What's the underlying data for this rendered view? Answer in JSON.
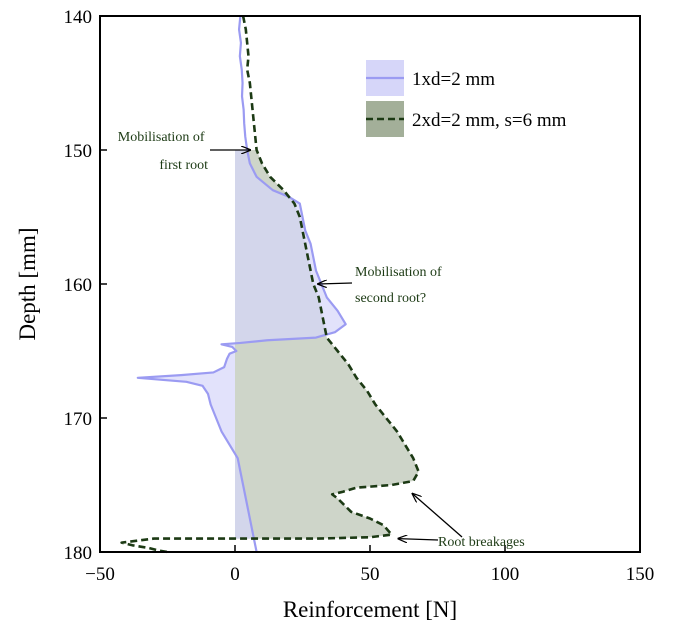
{
  "chart_data": {
    "type": "area",
    "xlabel": "Reinforcement [N]",
    "ylabel": "Depth [mm]",
    "xlim": [
      -50,
      150
    ],
    "ylim": [
      140,
      180
    ],
    "y_inverted": true,
    "xticks": [
      -50,
      0,
      50,
      100,
      150
    ],
    "yticks": [
      140,
      150,
      160,
      170,
      180
    ],
    "grid": false,
    "legend_position": "top-right",
    "colors": {
      "series1_line": "#9b9bf2",
      "series1_fill": "#d6d6f9",
      "series2_line": "#1c3a14",
      "series2_fill": "#9eab94",
      "annotation_text": "#1c3a14"
    },
    "series": [
      {
        "name": "1xd=2 mm",
        "fill_from_x": 0,
        "fill_depth_range": [
          150,
          179
        ],
        "points": [
          [
            2,
            140
          ],
          [
            1.5,
            141
          ],
          [
            2.2,
            142
          ],
          [
            1.8,
            143
          ],
          [
            2.5,
            144
          ],
          [
            2.8,
            145
          ],
          [
            2.6,
            146
          ],
          [
            3.2,
            147
          ],
          [
            3.4,
            148
          ],
          [
            3.8,
            149
          ],
          [
            4.5,
            150
          ],
          [
            5.5,
            151
          ],
          [
            8,
            152
          ],
          [
            14,
            153
          ],
          [
            20,
            153.5
          ],
          [
            24,
            154
          ],
          [
            25,
            155
          ],
          [
            26,
            156
          ],
          [
            28,
            157
          ],
          [
            29,
            158
          ],
          [
            30,
            159
          ],
          [
            32,
            160
          ],
          [
            34,
            161
          ],
          [
            38,
            162
          ],
          [
            41,
            163
          ],
          [
            37,
            163.6
          ],
          [
            30,
            164
          ],
          [
            12,
            164.2
          ],
          [
            2,
            164.4
          ],
          [
            -5,
            164.5
          ],
          [
            -1,
            164.7
          ],
          [
            0.5,
            165
          ],
          [
            -2,
            165.2
          ],
          [
            -3,
            165.6
          ],
          [
            -4,
            166.2
          ],
          [
            -8,
            166.6
          ],
          [
            -20,
            166.8
          ],
          [
            -36,
            167
          ],
          [
            -18,
            167.3
          ],
          [
            -12,
            167.6
          ],
          [
            -10,
            168.2
          ],
          [
            -9,
            169
          ],
          [
            -7,
            170
          ],
          [
            -5,
            171
          ],
          [
            -2,
            172
          ],
          [
            1,
            173
          ],
          [
            2,
            174
          ],
          [
            3,
            175
          ],
          [
            4,
            176
          ],
          [
            5,
            177
          ],
          [
            6,
            178
          ],
          [
            7,
            179
          ],
          [
            8,
            180
          ]
        ]
      },
      {
        "name": "2xd=2 mm, s=6 mm",
        "fill_from_x": 0,
        "fill_depth_range": [
          150,
          179
        ],
        "points": [
          [
            3,
            140
          ],
          [
            4,
            141
          ],
          [
            4.5,
            142
          ],
          [
            5,
            143
          ],
          [
            4.5,
            144
          ],
          [
            5.5,
            145
          ],
          [
            6,
            146
          ],
          [
            6.5,
            147
          ],
          [
            7,
            148
          ],
          [
            7.5,
            149
          ],
          [
            8,
            150
          ],
          [
            10,
            151
          ],
          [
            13,
            152
          ],
          [
            18,
            153
          ],
          [
            22,
            154
          ],
          [
            24,
            155
          ],
          [
            25,
            156
          ],
          [
            26,
            157
          ],
          [
            27,
            158
          ],
          [
            28,
            159
          ],
          [
            29,
            160
          ],
          [
            31,
            161
          ],
          [
            32,
            162
          ],
          [
            33,
            163
          ],
          [
            34,
            164
          ],
          [
            38,
            165
          ],
          [
            42,
            166
          ],
          [
            45,
            167
          ],
          [
            49,
            168
          ],
          [
            52,
            169
          ],
          [
            56,
            170
          ],
          [
            60,
            171
          ],
          [
            63,
            172
          ],
          [
            66,
            173
          ],
          [
            68,
            174
          ],
          [
            66,
            174.7
          ],
          [
            58,
            175
          ],
          [
            45,
            175.2
          ],
          [
            40,
            175.5
          ],
          [
            36,
            175.7
          ],
          [
            38,
            176
          ],
          [
            43,
            177
          ],
          [
            50,
            177.5
          ],
          [
            55,
            178
          ],
          [
            58,
            178.7
          ],
          [
            50,
            178.9
          ],
          [
            30,
            179
          ],
          [
            0,
            179
          ],
          [
            -30,
            179
          ],
          [
            -42,
            179.3
          ],
          [
            -38,
            179.5
          ],
          [
            -32,
            179.7
          ],
          [
            -28,
            179.9
          ],
          [
            -25,
            180
          ]
        ]
      }
    ],
    "annotations": [
      {
        "text_lines": [
          "Mobilisation of",
          "first root"
        ],
        "target": [
          4.5,
          150
        ]
      },
      {
        "text_lines": [
          "Mobilisation of",
          "second root?"
        ],
        "target": [
          30,
          160
        ]
      },
      {
        "text_lines": [
          "Root breakages"
        ],
        "targets": [
          [
            65,
            175.5
          ],
          [
            59,
            179
          ]
        ]
      }
    ]
  }
}
